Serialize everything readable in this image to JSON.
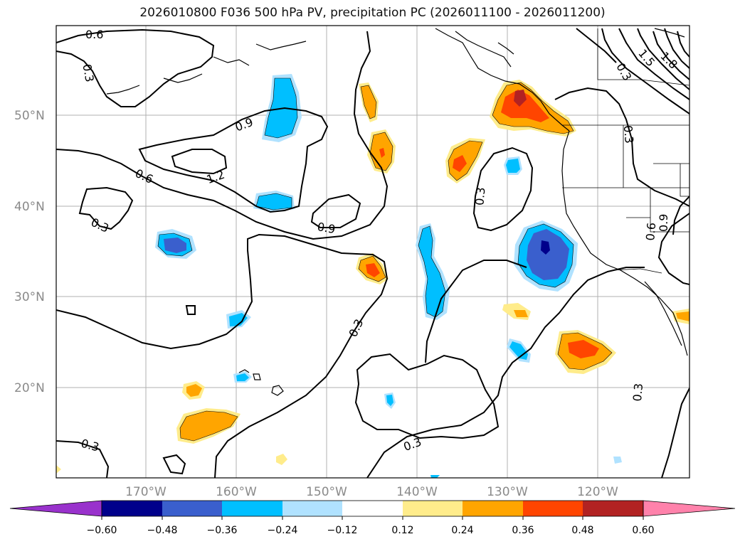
{
  "title": "2026010800 F036 500 hPa PV, precipitation PC (2026011100 - 2026011200)",
  "lat_labels": [
    "50°N",
    "40°N",
    "30°N",
    "20°N"
  ],
  "lon_labels": [
    "170°W",
    "160°W",
    "150°W",
    "140°W",
    "130°W",
    "120°W"
  ],
  "contour_labels": [
    "0.6",
    "0.3",
    "0.9",
    "1.2",
    "0.6",
    "0.3",
    "0.9",
    "0.3",
    "0.3",
    "0.3",
    "0.3",
    "0.3",
    "0.6",
    "0.9",
    "0.3",
    "1.5",
    "1.8",
    "0.3"
  ],
  "colorbar": {
    "ticks": [
      "−0.60",
      "−0.48",
      "−0.36",
      "−0.24",
      "−0.12",
      "0.12",
      "0.24",
      "0.36",
      "0.48",
      "0.60"
    ],
    "colors": [
      "#9932CC",
      "#00008B",
      "#3A5FCD",
      "#00BFFF",
      "#B0E2FF",
      "#FFFFFF",
      "#FFEC8B",
      "#FFA500",
      "#FF4500",
      "#B22222",
      "#FF82AB"
    ]
  }
}
